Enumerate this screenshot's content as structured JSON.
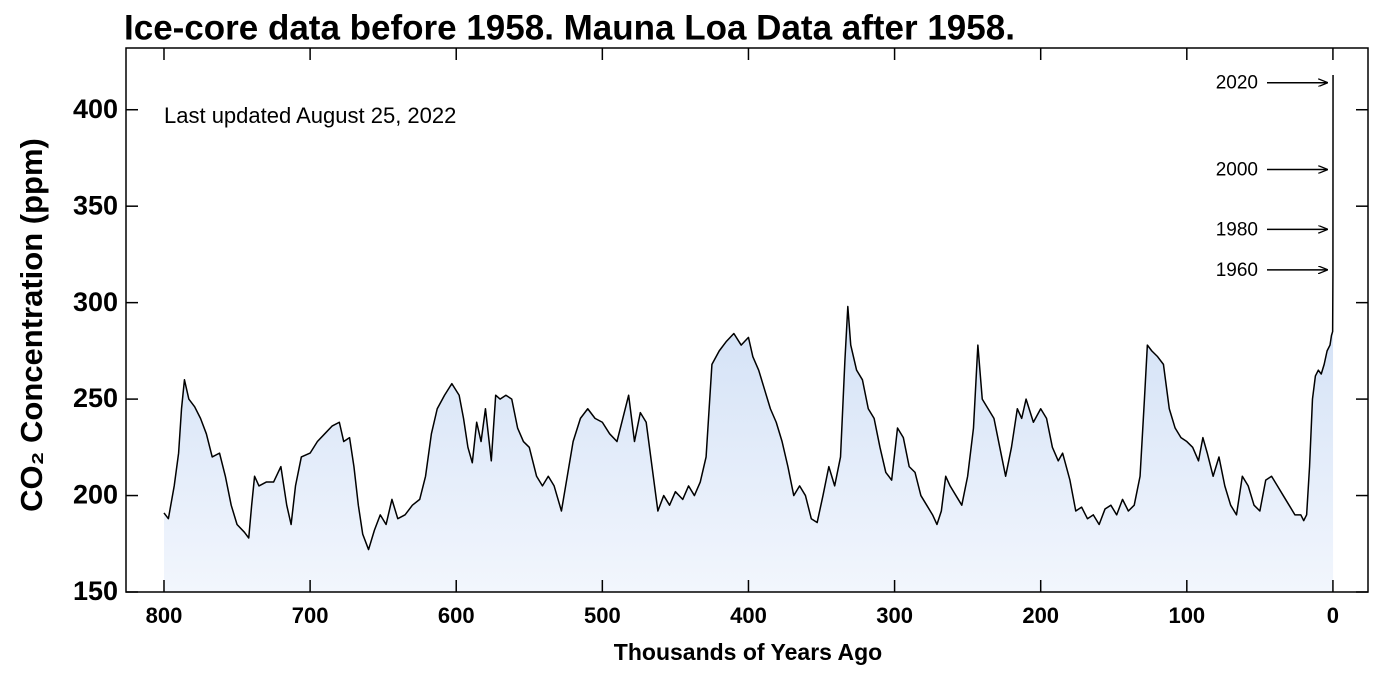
{
  "chart_data": {
    "type": "area",
    "title": "Ice-core data before 1958. Mauna Loa Data after 1958.",
    "xlabel": "Thousands of Years Ago",
    "ylabel": "CO₂ Concentration (ppm)",
    "note": "Last updated August 25, 2022",
    "xlim": [
      826,
      -24
    ],
    "ylim": [
      150,
      432
    ],
    "xticks": [
      800,
      700,
      600,
      500,
      400,
      300,
      200,
      100,
      0
    ],
    "yticks": [
      150,
      200,
      250,
      300,
      350,
      400
    ],
    "line_color": "#000000",
    "fill_color": "#b9d0f0",
    "annotations": [
      {
        "text": "2020",
        "y": 414
      },
      {
        "text": "2000",
        "y": 369
      },
      {
        "text": "1980",
        "y": 338
      },
      {
        "text": "1960",
        "y": 317
      }
    ],
    "x": [
      800,
      797,
      793,
      790,
      788,
      786,
      783,
      779,
      775,
      771,
      767,
      762,
      758,
      754,
      750,
      745,
      742,
      740,
      738,
      735,
      730,
      725,
      720,
      716,
      713,
      710,
      706,
      700,
      695,
      690,
      685,
      680,
      677,
      673,
      670,
      667,
      664,
      660,
      656,
      652,
      648,
      644,
      640,
      635,
      630,
      625,
      621,
      617,
      613,
      608,
      603,
      598,
      595,
      592,
      589,
      586,
      583,
      580,
      576,
      573,
      570,
      566,
      562,
      558,
      554,
      550,
      545,
      541,
      537,
      533,
      528,
      524,
      520,
      515,
      510,
      505,
      500,
      495,
      490,
      486,
      482,
      478,
      474,
      470,
      466,
      462,
      458,
      454,
      450,
      445,
      441,
      437,
      433,
      429,
      425,
      420,
      415,
      410,
      405,
      400,
      397,
      393,
      389,
      385,
      381,
      377,
      373,
      369,
      365,
      361,
      357,
      353,
      349,
      345,
      341,
      337,
      334,
      332,
      330,
      326,
      322,
      318,
      314,
      310,
      306,
      302,
      298,
      294,
      290,
      286,
      282,
      278,
      274,
      271,
      268,
      265,
      262,
      258,
      254,
      250,
      246,
      243,
      240,
      236,
      232,
      228,
      224,
      220,
      216,
      213,
      210,
      205,
      200,
      196,
      192,
      188,
      185,
      180,
      176,
      172,
      168,
      164,
      160,
      156,
      152,
      148,
      144,
      140,
      136,
      132,
      129,
      127,
      124,
      120,
      116,
      112,
      108,
      104,
      100,
      96,
      92,
      89,
      86,
      82,
      78,
      74,
      70,
      66,
      62,
      58,
      54,
      50,
      46,
      42,
      38,
      34,
      30,
      26,
      22,
      20,
      18,
      16,
      14,
      12,
      10,
      8,
      6,
      4,
      2,
      1,
      0.2,
      -0.008,
      -0.072
    ],
    "values": [
      191,
      188,
      205,
      222,
      245,
      260,
      250,
      246,
      240,
      232,
      220,
      222,
      210,
      195,
      185,
      181,
      178,
      195,
      210,
      205,
      207,
      207,
      215,
      195,
      185,
      205,
      220,
      222,
      228,
      232,
      236,
      238,
      228,
      230,
      215,
      195,
      180,
      172,
      182,
      190,
      185,
      198,
      188,
      190,
      195,
      198,
      210,
      232,
      245,
      252,
      258,
      252,
      240,
      225,
      217,
      238,
      228,
      245,
      218,
      252,
      250,
      252,
      250,
      235,
      228,
      225,
      210,
      205,
      210,
      205,
      192,
      210,
      228,
      240,
      245,
      240,
      238,
      232,
      228,
      240,
      252,
      228,
      243,
      238,
      215,
      192,
      200,
      195,
      202,
      198,
      205,
      200,
      207,
      220,
      268,
      275,
      280,
      284,
      278,
      282,
      272,
      265,
      255,
      245,
      238,
      228,
      215,
      200,
      205,
      200,
      188,
      186,
      200,
      215,
      205,
      220,
      270,
      298,
      278,
      265,
      260,
      245,
      240,
      225,
      212,
      208,
      235,
      230,
      215,
      212,
      200,
      195,
      190,
      185,
      192,
      210,
      205,
      200,
      195,
      210,
      235,
      278,
      250,
      245,
      240,
      225,
      210,
      225,
      245,
      240,
      250,
      238,
      245,
      240,
      225,
      218,
      222,
      208,
      192,
      194,
      188,
      190,
      185,
      193,
      195,
      190,
      198,
      192,
      195,
      210,
      250,
      278,
      275,
      272,
      268,
      245,
      235,
      230,
      228,
      225,
      218,
      230,
      222,
      210,
      220,
      205,
      195,
      190,
      210,
      205,
      195,
      192,
      208,
      210,
      205,
      200,
      195,
      190,
      190,
      187,
      190,
      215,
      250,
      262,
      265,
      263,
      268,
      275,
      278,
      283,
      285,
      315,
      418
    ]
  }
}
